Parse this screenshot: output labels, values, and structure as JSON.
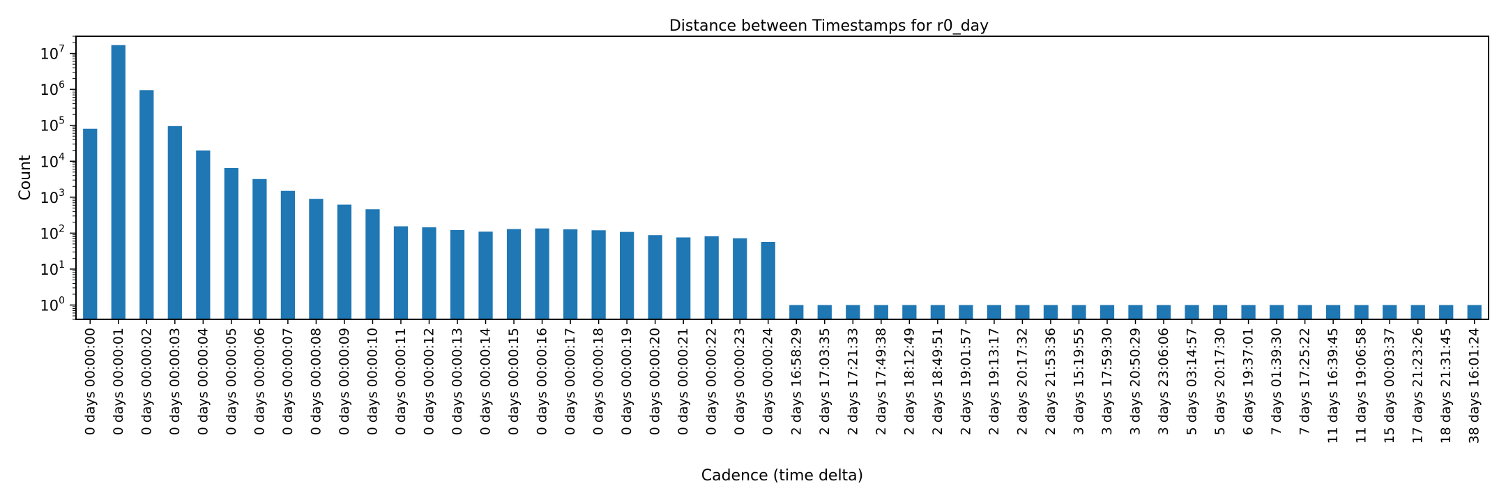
{
  "chart_data": {
    "type": "bar",
    "title": "Distance between Timestamps for r0_day",
    "xlabel": "Cadence (time delta)",
    "ylabel": "Count",
    "yscale": "log",
    "ylim": [
      0.4,
      30000000
    ],
    "yticks": [
      {
        "value": 1,
        "base": "10",
        "exp": "0"
      },
      {
        "value": 10,
        "base": "10",
        "exp": "1"
      },
      {
        "value": 100,
        "base": "10",
        "exp": "2"
      },
      {
        "value": 1000,
        "base": "10",
        "exp": "3"
      },
      {
        "value": 10000,
        "base": "10",
        "exp": "4"
      },
      {
        "value": 100000,
        "base": "10",
        "exp": "5"
      },
      {
        "value": 1000000,
        "base": "10",
        "exp": "6"
      },
      {
        "value": 10000000,
        "base": "10",
        "exp": "7"
      }
    ],
    "grid": false,
    "bar_color": "#1f77b4",
    "categories": [
      "0 days 00:00:00",
      "0 days 00:00:01",
      "0 days 00:00:02",
      "0 days 00:00:03",
      "0 days 00:00:04",
      "0 days 00:00:05",
      "0 days 00:00:06",
      "0 days 00:00:07",
      "0 days 00:00:08",
      "0 days 00:00:09",
      "0 days 00:00:10",
      "0 days 00:00:11",
      "0 days 00:00:12",
      "0 days 00:00:13",
      "0 days 00:00:14",
      "0 days 00:00:15",
      "0 days 00:00:16",
      "0 days 00:00:17",
      "0 days 00:00:18",
      "0 days 00:00:19",
      "0 days 00:00:20",
      "0 days 00:00:21",
      "0 days 00:00:22",
      "0 days 00:00:23",
      "0 days 00:00:24",
      "2 days 16:58:29",
      "2 days 17:03:35",
      "2 days 17:21:33",
      "2 days 17:49:38",
      "2 days 18:12:49",
      "2 days 18:49:51",
      "2 days 19:01:57",
      "2 days 19:13:17",
      "2 days 20:17:32",
      "2 days 21:53:36",
      "3 days 15:19:55",
      "3 days 17:59:30",
      "3 days 20:50:29",
      "3 days 23:06:06",
      "5 days 03:14:57",
      "5 days 20:17:30",
      "6 days 19:37:01",
      "7 days 01:39:30",
      "7 days 17:25:22",
      "11 days 16:39:45",
      "11 days 19:06:58",
      "15 days 00:03:37",
      "17 days 21:23:26",
      "18 days 21:31:45",
      "38 days 16:01:24"
    ],
    "values": [
      80000,
      17000000,
      950000,
      95000,
      20000,
      6500,
      3200,
      1500,
      900,
      620,
      460,
      155,
      145,
      122,
      110,
      130,
      135,
      128,
      120,
      108,
      88,
      76,
      82,
      72,
      57,
      1,
      1,
      1,
      1,
      1,
      1,
      1,
      1,
      1,
      1,
      1,
      1,
      1,
      1,
      1,
      1,
      1,
      1,
      1,
      1,
      1,
      1,
      1,
      1,
      1
    ]
  }
}
